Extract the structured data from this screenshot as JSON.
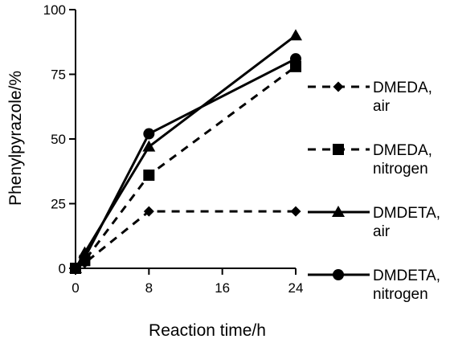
{
  "chart_data": {
    "type": "line",
    "title": "",
    "xlabel": "Reaction time/h",
    "ylabel": "Phenylpyrazole/%",
    "xlim": [
      0,
      24
    ],
    "ylim": [
      0,
      100
    ],
    "xticks": [
      "0",
      "8",
      "16",
      "24"
    ],
    "yticks": [
      "0",
      "25",
      "50",
      "75",
      "100"
    ],
    "grid": false,
    "legend_position": "right",
    "series": [
      {
        "name_lines": [
          "DMEDA,",
          "air"
        ],
        "marker": "diamond",
        "dashed": true,
        "x": [
          0,
          1,
          8,
          24
        ],
        "y": [
          0,
          2,
          22,
          22
        ]
      },
      {
        "name_lines": [
          "DMEDA,",
          "nitrogen"
        ],
        "marker": "square",
        "dashed": true,
        "x": [
          0,
          1,
          8,
          24
        ],
        "y": [
          0,
          3,
          36,
          78
        ]
      },
      {
        "name_lines": [
          "DMDETA,",
          "air"
        ],
        "marker": "triangle",
        "dashed": false,
        "x": [
          0,
          1,
          8,
          24
        ],
        "y": [
          0,
          6,
          47,
          90
        ]
      },
      {
        "name_lines": [
          "DMDETA,",
          "nitrogen"
        ],
        "marker": "circle",
        "dashed": false,
        "x": [
          0,
          1,
          8,
          24
        ],
        "y": [
          0,
          4,
          52,
          81
        ]
      }
    ]
  }
}
